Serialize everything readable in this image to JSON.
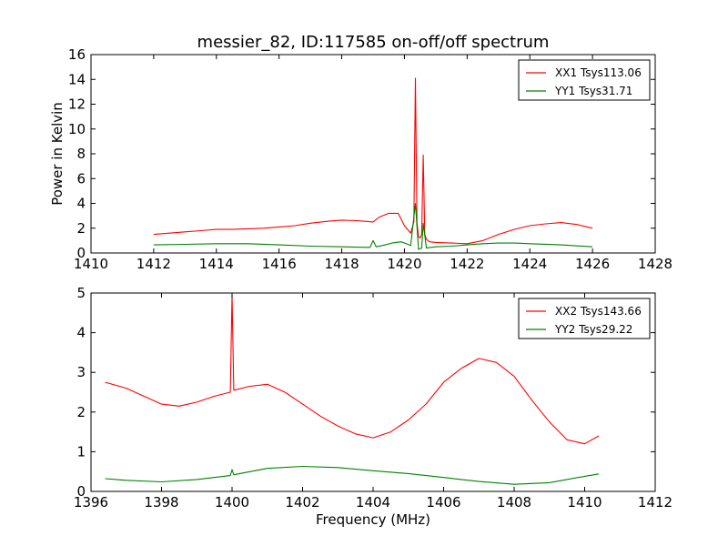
{
  "chart_data": [
    {
      "type": "line",
      "title": "messier_82, ID:117585 on-off/off spectrum",
      "xlabel": "",
      "ylabel": "Power in Kelvin",
      "xlim": [
        1410,
        1428
      ],
      "ylim": [
        0,
        16
      ],
      "xticks": [
        1410,
        1412,
        1414,
        1416,
        1418,
        1420,
        1422,
        1424,
        1426,
        1428
      ],
      "yticks": [
        0,
        2,
        4,
        6,
        8,
        10,
        12,
        14,
        16
      ],
      "grid": false,
      "legend_position": "top-right",
      "series": [
        {
          "name": "XX1 Tsys113.06",
          "color": "#ff0000",
          "x": [
            1412,
            1412.5,
            1413,
            1413.5,
            1414,
            1414.5,
            1415,
            1415.5,
            1416,
            1416.5,
            1417,
            1417.5,
            1418,
            1418.5,
            1419,
            1419.2,
            1419.5,
            1419.8,
            1420,
            1420.2,
            1420.3,
            1420.35,
            1420.4,
            1420.45,
            1420.5,
            1420.55,
            1420.6,
            1420.65,
            1420.7,
            1420.8,
            1421,
            1421.5,
            1422,
            1422.5,
            1423,
            1423.5,
            1424,
            1424.5,
            1425,
            1425.5,
            1426
          ],
          "y": [
            1.5,
            1.6,
            1.7,
            1.8,
            1.9,
            1.9,
            1.95,
            2.0,
            2.1,
            2.2,
            2.4,
            2.55,
            2.65,
            2.6,
            2.5,
            2.9,
            3.2,
            3.2,
            2.2,
            1.6,
            2.5,
            14.1,
            2.5,
            1.3,
            1.2,
            1.5,
            7.9,
            1.5,
            1.1,
            0.9,
            0.85,
            0.8,
            0.75,
            1.0,
            1.5,
            1.9,
            2.2,
            2.35,
            2.45,
            2.3,
            2.0
          ]
        },
        {
          "name": "YY1 Tsys31.71",
          "color": "#008000",
          "x": [
            1412,
            1413,
            1414,
            1415,
            1416,
            1417,
            1418,
            1418.9,
            1419.0,
            1419.1,
            1419.3,
            1419.6,
            1419.9,
            1420.2,
            1420.35,
            1420.45,
            1420.55,
            1420.6,
            1420.7,
            1421,
            1421.5,
            1422,
            1422.5,
            1423,
            1423.5,
            1424,
            1425,
            1426
          ],
          "y": [
            0.65,
            0.7,
            0.75,
            0.75,
            0.65,
            0.55,
            0.5,
            0.45,
            1.0,
            0.5,
            0.6,
            0.8,
            0.9,
            0.6,
            4.0,
            0.3,
            0.4,
            2.4,
            0.4,
            0.5,
            0.55,
            0.65,
            0.75,
            0.8,
            0.8,
            0.75,
            0.65,
            0.5
          ]
        }
      ]
    },
    {
      "type": "line",
      "title": "",
      "xlabel": "Frequency (MHz)",
      "ylabel": "",
      "xlim": [
        1396,
        1412
      ],
      "ylim": [
        0,
        5
      ],
      "xticks": [
        1396,
        1398,
        1400,
        1402,
        1404,
        1406,
        1408,
        1410,
        1412
      ],
      "yticks": [
        0,
        1,
        2,
        3,
        4,
        5
      ],
      "grid": false,
      "legend_position": "top-right",
      "series": [
        {
          "name": "XX2 Tsys143.66",
          "color": "#ff0000",
          "x": [
            1396.4,
            1397,
            1397.5,
            1398,
            1398.5,
            1399,
            1399.5,
            1399.95,
            1400.0,
            1400.05,
            1400.5,
            1401,
            1401.5,
            1402,
            1402.5,
            1403,
            1403.5,
            1404,
            1404.5,
            1405,
            1405.5,
            1406,
            1406.5,
            1407,
            1407.5,
            1408,
            1408.5,
            1409,
            1409.5,
            1410,
            1410.4
          ],
          "y": [
            2.75,
            2.6,
            2.4,
            2.2,
            2.15,
            2.25,
            2.4,
            2.5,
            4.95,
            2.55,
            2.65,
            2.7,
            2.5,
            2.2,
            1.9,
            1.65,
            1.45,
            1.35,
            1.5,
            1.8,
            2.2,
            2.75,
            3.1,
            3.35,
            3.25,
            2.9,
            2.3,
            1.75,
            1.3,
            1.2,
            1.4
          ]
        },
        {
          "name": "YY2 Tsys29.22",
          "color": "#008000",
          "x": [
            1396.4,
            1397,
            1398,
            1399,
            1399.95,
            1400.0,
            1400.05,
            1401,
            1402,
            1403,
            1404,
            1405,
            1406,
            1407,
            1408,
            1409,
            1410,
            1410.4
          ],
          "y": [
            0.32,
            0.28,
            0.24,
            0.3,
            0.4,
            0.55,
            0.42,
            0.58,
            0.63,
            0.6,
            0.52,
            0.45,
            0.35,
            0.25,
            0.18,
            0.22,
            0.38,
            0.44
          ]
        }
      ]
    }
  ]
}
